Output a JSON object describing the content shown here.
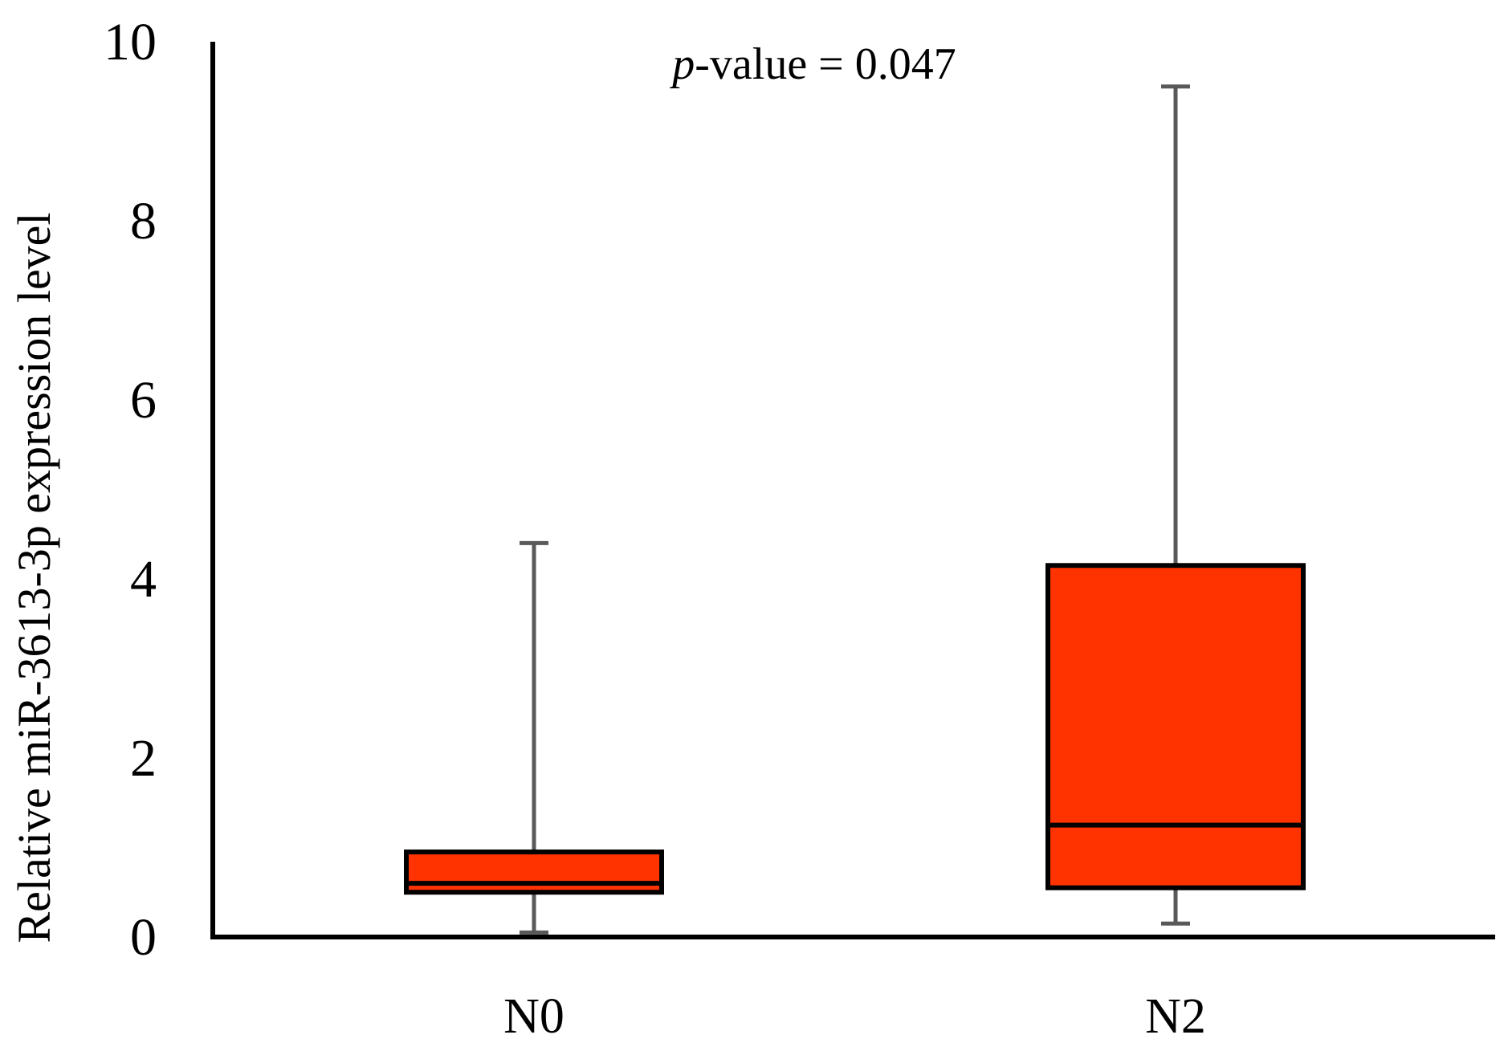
{
  "chart_data": {
    "type": "box",
    "title": "",
    "xlabel": "",
    "ylabel": "Relative miR-3613-3p expression level",
    "ylim": [
      0,
      10
    ],
    "yticks": [
      0,
      2,
      4,
      6,
      8,
      10
    ],
    "grid": false,
    "annotation": {
      "italic": "p",
      "rest": "-value = 0.047"
    },
    "categories": [
      "N0",
      "N2"
    ],
    "boxes": [
      {
        "label": "N0",
        "min": 0.05,
        "q1": 0.5,
        "median": 0.6,
        "q3": 0.95,
        "max": 4.4
      },
      {
        "label": "N2",
        "min": 0.15,
        "q1": 0.55,
        "median": 1.25,
        "q3": 4.15,
        "max": 9.5
      }
    ],
    "colors": {
      "box_fill": "#ff3300",
      "box_edge": "#000000",
      "whisker": "#595959",
      "axis": "#000000"
    }
  }
}
